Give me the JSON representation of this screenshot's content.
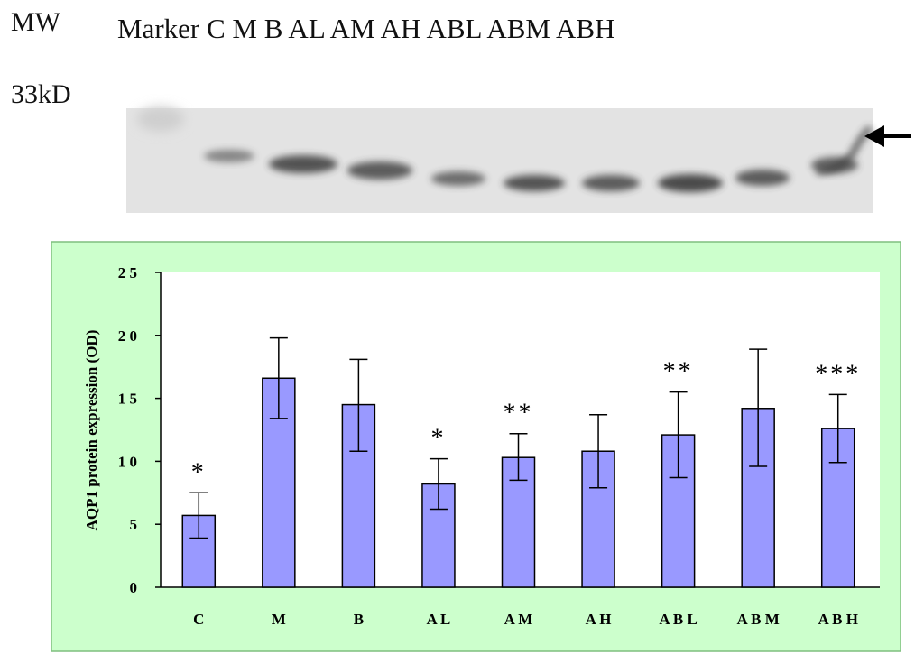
{
  "header": {
    "mw_label": "MW",
    "lane_labels": "Marker C M B AL AM AH ABL ABM ABH",
    "size_label": "33kD"
  },
  "blot": {
    "background_color": "#e4e4e4",
    "band_color": "#3a3a3a",
    "arrow_icon": "arrow-left-icon"
  },
  "chart_data": {
    "type": "bar",
    "categories": [
      "C",
      "M",
      "B",
      "AL",
      "AM",
      "AH",
      "ABL",
      "ABM",
      "ABH"
    ],
    "category_labels": [
      "C",
      "M",
      "B",
      "A L",
      "A M",
      "A H",
      "A B L",
      "A B M",
      "A B H"
    ],
    "values": [
      5.7,
      16.6,
      14.5,
      8.2,
      10.3,
      10.8,
      12.1,
      14.2,
      12.6
    ],
    "error_low": [
      3.9,
      13.4,
      10.8,
      6.2,
      8.5,
      7.9,
      8.7,
      9.6,
      9.9
    ],
    "error_high": [
      7.5,
      19.8,
      18.1,
      10.2,
      12.2,
      13.7,
      15.5,
      18.9,
      15.3
    ],
    "annotations": [
      "*",
      "",
      "",
      "*",
      "**",
      "",
      "**",
      "",
      "***"
    ],
    "ylabel": "AQP1 protein expression (OD)",
    "ylim": [
      0,
      25
    ],
    "yticks": [
      0,
      5,
      10,
      15,
      20,
      25
    ],
    "bar_color": "#9999ff",
    "panel_color": "#ccffcc",
    "grid": false
  }
}
